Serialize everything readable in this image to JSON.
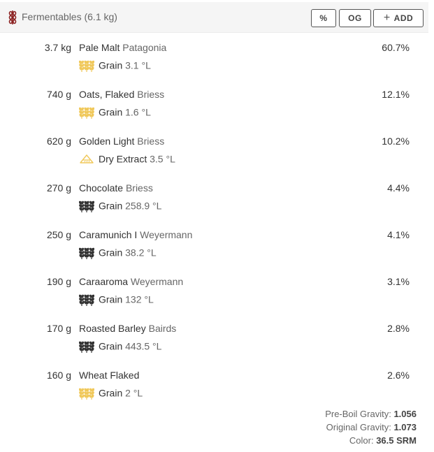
{
  "header": {
    "title": "Fermentables (6.1 kg)",
    "buttons": {
      "percent": "%",
      "og": "OG",
      "add": "ADD"
    }
  },
  "colors": {
    "accent_icon": "#8b2020",
    "light_grain": "#f0c85a",
    "dark_grain": "#333333"
  },
  "fermentables": [
    {
      "amount": "3.7 kg",
      "name": "Pale Malt",
      "supplier": "Patagonia",
      "percent": "60.7%",
      "type": "Grain",
      "color": "3.1 °L",
      "icon": "light-grain-icon"
    },
    {
      "amount": "740 g",
      "name": "Oats, Flaked",
      "supplier": "Briess",
      "percent": "12.1%",
      "type": "Grain",
      "color": "1.6 °L",
      "icon": "light-grain-icon"
    },
    {
      "amount": "620 g",
      "name": "Golden Light",
      "supplier": "Briess",
      "percent": "10.2%",
      "type": "Dry Extract",
      "color": "3.5 °L",
      "icon": "dry-extract-icon"
    },
    {
      "amount": "270 g",
      "name": "Chocolate",
      "supplier": "Briess",
      "percent": "4.4%",
      "type": "Grain",
      "color": "258.9 °L",
      "icon": "dark-grain-icon"
    },
    {
      "amount": "250 g",
      "name": "Caramunich I",
      "supplier": "Weyermann",
      "percent": "4.1%",
      "type": "Grain",
      "color": "38.2 °L",
      "icon": "dark-grain-icon"
    },
    {
      "amount": "190 g",
      "name": "Caraaroma",
      "supplier": "Weyermann",
      "percent": "3.1%",
      "type": "Grain",
      "color": "132 °L",
      "icon": "dark-grain-icon"
    },
    {
      "amount": "170 g",
      "name": "Roasted Barley",
      "supplier": "Bairds",
      "percent": "2.8%",
      "type": "Grain",
      "color": "443.5 °L",
      "icon": "dark-grain-icon"
    },
    {
      "amount": "160 g",
      "name": "Wheat Flaked",
      "supplier": "",
      "percent": "2.6%",
      "type": "Grain",
      "color": "2 °L",
      "icon": "light-grain-icon"
    }
  ],
  "summary": {
    "pre_boil_label": "Pre-Boil Gravity:",
    "pre_boil_value": "1.056",
    "og_label": "Original Gravity:",
    "og_value": "1.073",
    "color_label": "Color:",
    "color_value": "36.5 SRM"
  }
}
